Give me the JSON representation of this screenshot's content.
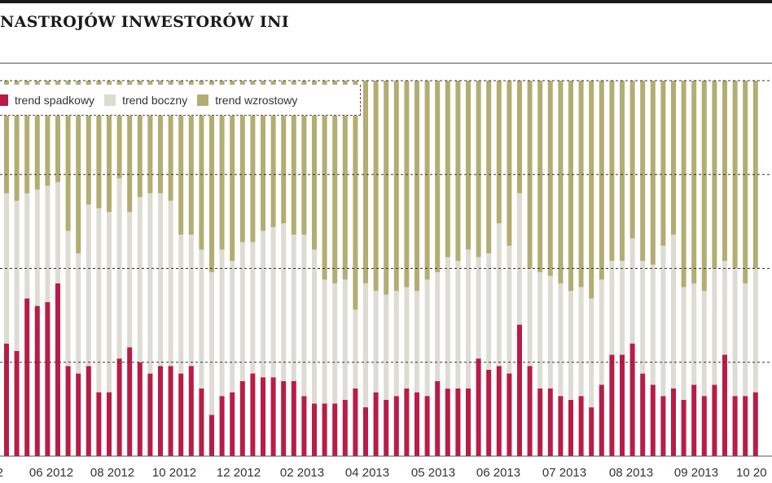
{
  "title": "NASTROJÓW INWESTORÓW INI",
  "colors": {
    "spadkowy": "#b81c47",
    "boczny": "#dcdcd2",
    "wzrostowy": "#b3ad72",
    "grid": "#333333"
  },
  "legend": {
    "items": [
      {
        "label": "trend spadkowy",
        "color": "#b81c47"
      },
      {
        "label": "trend boczny",
        "color": "#dcdcd2"
      },
      {
        "label": "trend wzrostowy",
        "color": "#b3ad72"
      }
    ]
  },
  "chart_data": {
    "type": "bar",
    "stacked": true,
    "percent": true,
    "ylim": [
      0,
      100
    ],
    "grid": true,
    "legend_position": "top-left",
    "x_tick_labels": [
      "2",
      "06 2012",
      "08 2012",
      "10 2012",
      "12 2012",
      "02 2013",
      "04 2013",
      "05 2013",
      "06 2013",
      "07 2013",
      "08 2013",
      "09 2013",
      "10 20"
    ],
    "series": [
      {
        "name": "trend spadkowy",
        "values": [
          30,
          28,
          42,
          40,
          41,
          46,
          24,
          22,
          24,
          17,
          17,
          26,
          29,
          25,
          22,
          24,
          24,
          22,
          24,
          18,
          11,
          16,
          17,
          20,
          22,
          21,
          21,
          20,
          20,
          16,
          14,
          14,
          14,
          15,
          18,
          13,
          17,
          15,
          16,
          18,
          17,
          16,
          20,
          18,
          18,
          18,
          26,
          23,
          24,
          22,
          35,
          24,
          18,
          18,
          16,
          15,
          16,
          13,
          19,
          27,
          27,
          30,
          22,
          19,
          16,
          18,
          15,
          19,
          16,
          19,
          27,
          16,
          16,
          17
        ]
      },
      {
        "name": "trend boczny",
        "values": [
          40,
          40,
          28,
          31,
          31,
          27,
          36,
          32,
          43,
          49,
          48,
          48,
          36,
          44,
          48,
          46,
          44,
          37,
          35,
          37,
          38,
          39,
          35,
          37,
          35,
          39,
          40,
          42,
          39,
          43,
          41,
          33,
          32,
          32,
          21,
          33,
          27,
          28,
          28,
          27,
          27,
          31,
          29,
          35,
          34,
          37,
          27,
          31,
          38,
          34,
          35,
          26,
          31,
          30,
          30,
          29,
          29,
          29,
          28,
          25,
          25,
          28,
          30,
          32,
          40,
          41,
          30,
          27,
          28,
          31,
          25,
          34,
          30,
          33
        ]
      },
      {
        "name": "trend wzrostowy",
        "values": [
          30,
          32,
          30,
          29,
          28,
          27,
          40,
          46,
          33,
          34,
          35,
          26,
          35,
          31,
          30,
          30,
          32,
          41,
          41,
          45,
          51,
          45,
          48,
          43,
          43,
          40,
          39,
          38,
          41,
          41,
          45,
          53,
          54,
          53,
          61,
          54,
          56,
          57,
          56,
          55,
          56,
          53,
          51,
          47,
          48,
          45,
          47,
          46,
          38,
          44,
          30,
          50,
          51,
          52,
          54,
          56,
          55,
          58,
          53,
          48,
          48,
          42,
          48,
          49,
          44,
          41,
          55,
          54,
          56,
          50,
          48,
          50,
          54,
          50
        ]
      }
    ]
  }
}
